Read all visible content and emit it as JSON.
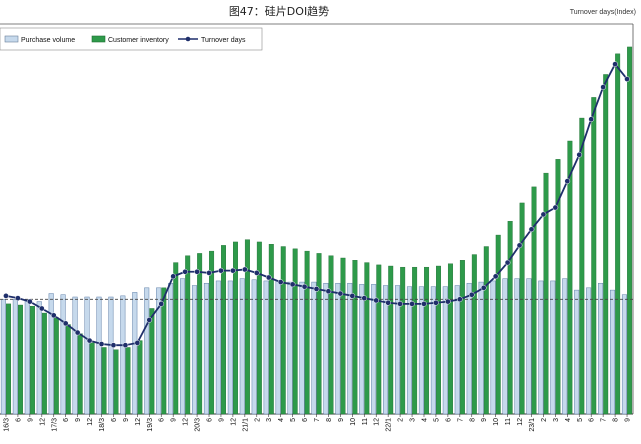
{
  "chart_data": {
    "type": "bar",
    "title": "图47：硅片DOI趋势",
    "corner_label": "Turnover days(Index)",
    "legend_position": "top-left",
    "grid": false,
    "ylim": [
      0,
      340
    ],
    "reference_value": 100,
    "colors": {
      "purchase": "#c6d9ec",
      "inventory": "#2e9a4a",
      "turnover": "#1f2f6b"
    },
    "legend": {
      "purchase": "Purchase volume",
      "inventory": "Customer inventory",
      "turnover": "Turnover days"
    },
    "categories": [
      "16/3",
      "6",
      "9",
      "12",
      "17/3",
      "6",
      "9",
      "12",
      "18/3",
      "6",
      "9",
      "12",
      "19/3",
      "6",
      "9",
      "12",
      "20/3",
      "6",
      "9",
      "12",
      "21/1",
      "2",
      "3",
      "4",
      "5",
      "6",
      "7",
      "8",
      "9",
      "10",
      "11",
      "12",
      "22/1",
      "2",
      "3",
      "4",
      "5",
      "6",
      "7",
      "8",
      "9",
      "10",
      "11",
      "12",
      "23/1",
      "2",
      "3",
      "4",
      "5",
      "6",
      "7",
      "8",
      "9"
    ],
    "series": [
      {
        "name": "Purchase volume",
        "type": "bar",
        "values": [
          100,
          100,
          100,
          98,
          105,
          104,
          102,
          102,
          102,
          102,
          103,
          106,
          110,
          110,
          114,
          118,
          112,
          114,
          116,
          116,
          118,
          117,
          116,
          116,
          115,
          115,
          115,
          114,
          114,
          114,
          113,
          113,
          112,
          112,
          111,
          111,
          111,
          111,
          112,
          114,
          115,
          116,
          118,
          118,
          118,
          116,
          116,
          118,
          108,
          110,
          114,
          108,
          104
        ]
      },
      {
        "name": "Customer inventory",
        "type": "bar",
        "values": [
          96,
          95,
          94,
          88,
          84,
          78,
          70,
          62,
          58,
          56,
          58,
          64,
          92,
          110,
          132,
          138,
          140,
          142,
          147,
          150,
          152,
          150,
          148,
          146,
          144,
          142,
          140,
          138,
          136,
          134,
          132,
          130,
          129,
          128,
          128,
          128,
          129,
          131,
          134,
          139,
          146,
          156,
          168,
          184,
          198,
          210,
          222,
          238,
          258,
          276,
          296,
          314,
          320
        ]
      },
      {
        "name": "Turnover days",
        "type": "line",
        "values": [
          103,
          101,
          98,
          92,
          86,
          79,
          71,
          64,
          61,
          60,
          60,
          62,
          82,
          96,
          120,
          124,
          124,
          123,
          125,
          125,
          126,
          123,
          119,
          115,
          113,
          111,
          109,
          107,
          105,
          103,
          101,
          99,
          97,
          96,
          96,
          96,
          97,
          98,
          100,
          104,
          110,
          120,
          132,
          147,
          161,
          174,
          180,
          203,
          226,
          257,
          285,
          305,
          292
        ]
      }
    ]
  }
}
